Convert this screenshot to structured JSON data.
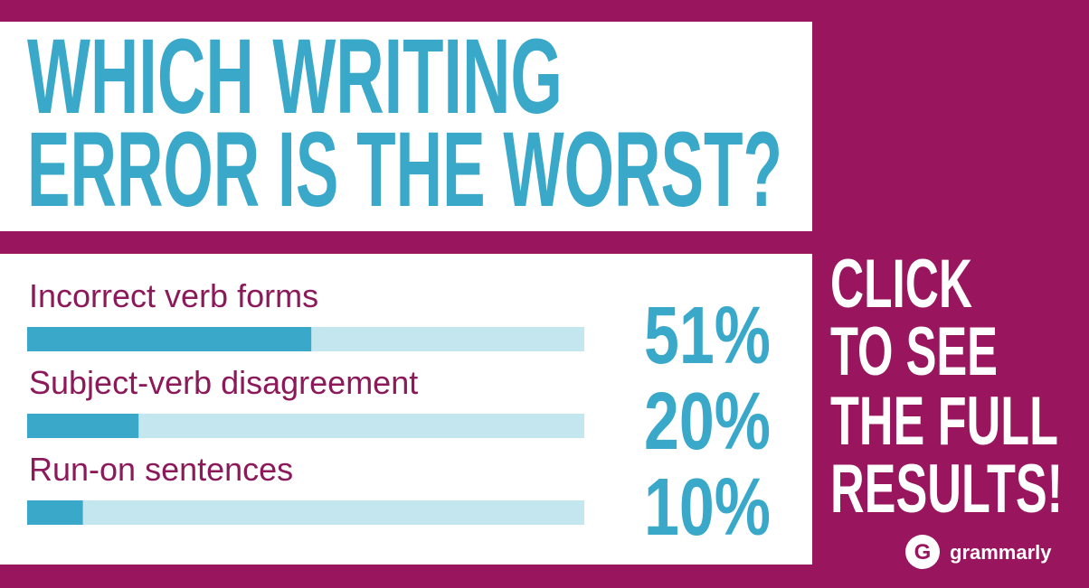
{
  "chart_data": {
    "type": "bar",
    "orientation": "horizontal",
    "title": [
      "WHICH WRITING",
      "ERROR IS THE WORST?"
    ],
    "categories": [
      "Incorrect verb forms",
      "Subject-verb disagreement",
      "Run-on sentences"
    ],
    "values": [
      51,
      20,
      10
    ],
    "value_labels": [
      "51%",
      "20%",
      "10%"
    ],
    "xlim": [
      0,
      100
    ],
    "color": "#3aa8c9",
    "track_color": "#c4e6ee",
    "call_to_action": [
      "CLICK",
      "TO SEE",
      "THE FULL",
      "RESULTS!"
    ],
    "logo": "grammarly"
  }
}
